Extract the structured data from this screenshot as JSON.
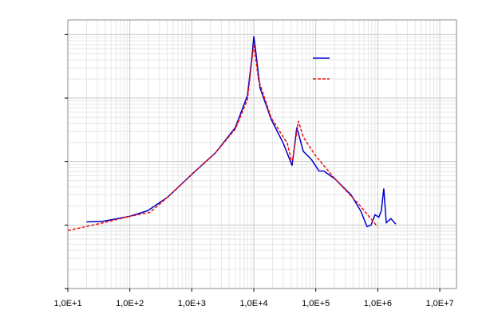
{
  "chart_data": {
    "type": "line",
    "xscale": "log",
    "yscale": "log",
    "grid": true,
    "xlim": [
      10,
      18600000
    ],
    "ylim": [
      0.0001,
      1.7
    ],
    "xticks": [
      {
        "value": 10,
        "label": "1,0E+1"
      },
      {
        "value": 100,
        "label": "1,0E+2"
      },
      {
        "value": 1000,
        "label": "1,0E+3"
      },
      {
        "value": 10000,
        "label": "1,0E+4"
      },
      {
        "value": 100000,
        "label": "1,0E+5"
      },
      {
        "value": 1000000,
        "label": "1,0E+6"
      },
      {
        "value": 10000000,
        "label": "1,0E+7"
      }
    ],
    "yticks": [
      0.0001,
      0.001,
      0.01,
      0.1,
      1
    ],
    "series": [
      {
        "color": "#0000cc",
        "dash": false,
        "x": [
          20,
          38,
          100,
          194,
          406,
          1000,
          2400,
          5050,
          7870,
          9400,
          10000,
          10600,
          12600,
          19100,
          29900,
          41400,
          49400,
          62700,
          84200,
          113000,
          135000,
          205000,
          370000,
          529000,
          670000,
          777000,
          901000,
          1040000,
          1140000,
          1250000,
          1370000,
          1630000,
          1950000
        ],
        "values": [
          0.00112,
          0.00115,
          0.00137,
          0.00168,
          0.00274,
          0.0063,
          0.0137,
          0.0345,
          0.109,
          0.46,
          0.94,
          0.61,
          0.145,
          0.046,
          0.0194,
          0.00866,
          0.0345,
          0.0145,
          0.0109,
          0.00708,
          0.00708,
          0.00531,
          0.00299,
          0.00168,
          0.000944,
          0.001,
          0.00145,
          0.00133,
          0.00168,
          0.00376,
          0.00109,
          0.00126,
          0.00103
        ]
      },
      {
        "color": "#ee1111",
        "dash": true,
        "x": [
          10,
          38,
          100,
          212,
          406,
          1000,
          2400,
          5050,
          7870,
          10000,
          11900,
          19100,
          34600,
          41400,
          52400,
          62700,
          97700,
          205000,
          498000,
          986000
        ],
        "values": [
          0.000818,
          0.00109,
          0.00137,
          0.00158,
          0.00274,
          0.0063,
          0.0137,
          0.0326,
          0.0944,
          0.708,
          0.194,
          0.0487,
          0.0194,
          0.00944,
          0.0434,
          0.0244,
          0.0126,
          0.00531,
          0.00211,
          0.000944
        ]
      }
    ],
    "legend": "top-right"
  }
}
